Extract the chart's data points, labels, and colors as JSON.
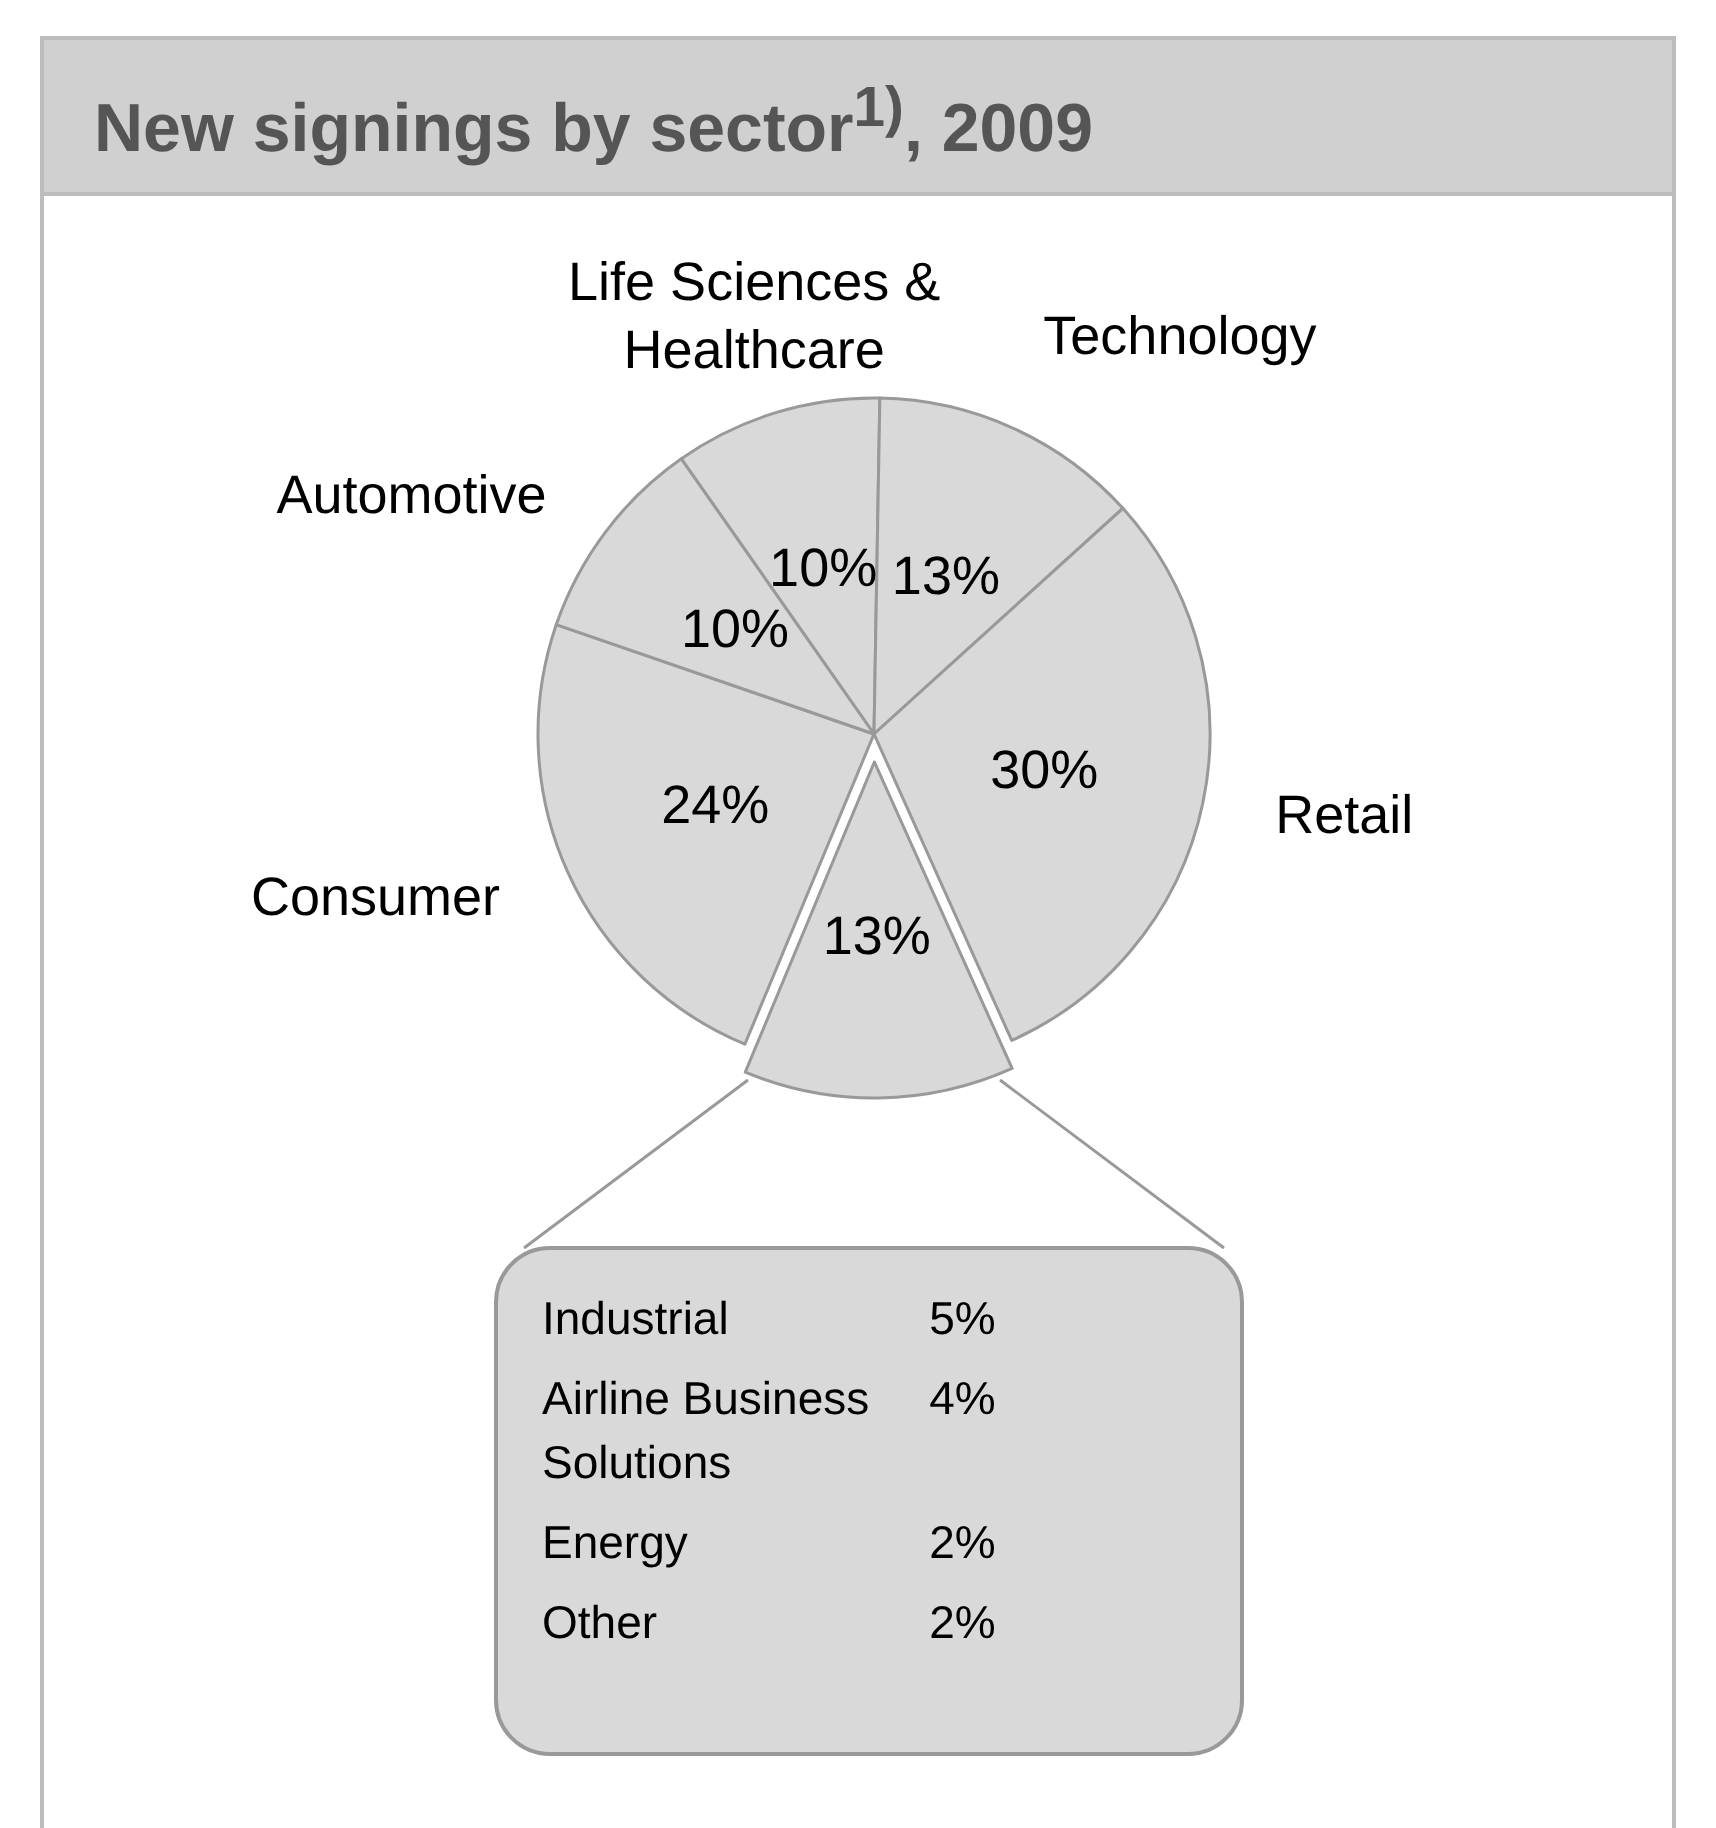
{
  "chart_data": [
    {
      "type": "pie",
      "title": "New signings by sector$^{1)}$, 2009",
      "categories": [
        "Life Sciences &\nHealthcare",
        "Technology",
        "Retail",
        null,
        "Consumer",
        "Automotive"
      ],
      "values": [
        10,
        13,
        30,
        13,
        24,
        10
      ],
      "value_labels": [
        "10%",
        "13%",
        "30%",
        "13%",
        "24%",
        "10%"
      ],
      "colors": [
        "#d9d9d9",
        "#d9d9d9",
        "#d9d9d9",
        "#d9d9d9",
        "#d9d9d9",
        "#d9d9d9"
      ]
    },
    {
      "type": "other",
      "categories": [
        "Industrial",
        "Airline Business\nSolutions",
        "Energy",
        "Other"
      ],
      "value_labels": [
        "5%",
        "4%",
        "2%",
        "2%"
      ]
    }
  ]
}
